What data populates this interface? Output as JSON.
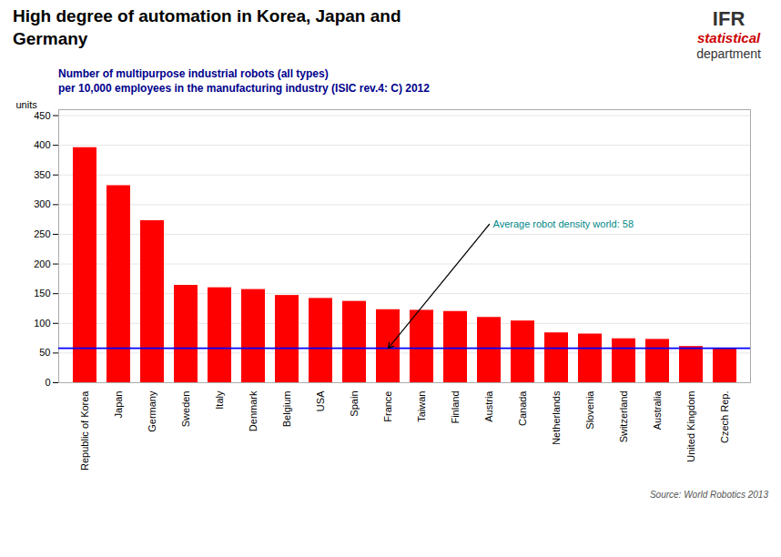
{
  "chart_data": {
    "type": "bar",
    "title": "High degree of automation in Korea, Japan and\nGermany",
    "subtitle": "Number of multipurpose industrial robots (all types)\nper 10,000 employees in the manufacturing industry (ISIC rev.4: C) 2012",
    "categories": [
      "Republic of Korea",
      "Japan",
      "Germany",
      "Sweden",
      "Italy",
      "Denmark",
      "Belgium",
      "USA",
      "Spain",
      "France",
      "Taiwan",
      "Finland",
      "Austria",
      "Canada",
      "Netherlands",
      "Slovenia",
      "Switzerland",
      "Australia",
      "United Kingdom",
      "Czech Rep."
    ],
    "values": [
      396,
      332,
      273,
      164,
      160,
      157,
      147,
      142,
      137,
      123,
      122,
      120,
      110,
      104,
      84,
      82,
      74,
      73,
      61,
      57
    ],
    "color": "#ff0000",
    "reference_line": {
      "value": 58,
      "label": "Average robot density world: 58",
      "color": "#0000ff"
    },
    "ylabel": "units",
    "caption": "Source: World Robotics 2013",
    "logo": [
      "IFR",
      "statistical",
      "department"
    ],
    "ylim": [
      0,
      460
    ],
    "yticks": [
      0,
      50,
      100,
      150,
      200,
      250,
      300,
      350,
      400,
      450
    ],
    "grid": true
  }
}
